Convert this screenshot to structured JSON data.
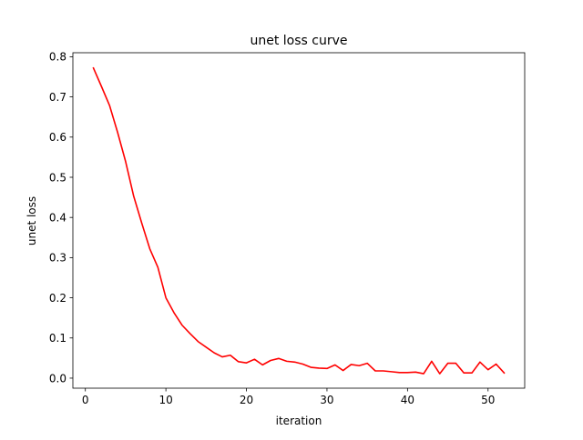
{
  "chart_data": {
    "type": "line",
    "title": "unet loss  curve",
    "xlabel": "iteration",
    "ylabel": "unet loss",
    "xlim": [
      -1.55,
      54.55
    ],
    "ylim": [
      -0.025,
      0.81
    ],
    "xticks": [
      0,
      10,
      20,
      30,
      40,
      50
    ],
    "xtick_labels": [
      "0",
      "10",
      "20",
      "30",
      "40",
      "50"
    ],
    "yticks": [
      0.0,
      0.1,
      0.2,
      0.3,
      0.4,
      0.5,
      0.6,
      0.7,
      0.8
    ],
    "ytick_labels": [
      "0.0",
      "0.1",
      "0.2",
      "0.3",
      "0.4",
      "0.5",
      "0.6",
      "0.7",
      "0.8"
    ],
    "grid": false,
    "legend": "none",
    "series": [
      {
        "name": "unet loss",
        "color": "#ff0000",
        "x": [
          1,
          2,
          3,
          4,
          5,
          6,
          7,
          8,
          9,
          10,
          11,
          12,
          13,
          14,
          15,
          16,
          17,
          18,
          19,
          20,
          21,
          22,
          23,
          24,
          25,
          26,
          27,
          28,
          29,
          30,
          31,
          32,
          33,
          34,
          35,
          36,
          37,
          38,
          39,
          40,
          41,
          42,
          43,
          44,
          45,
          46,
          47,
          48,
          49,
          50,
          51,
          52
        ],
        "values": [
          0.772,
          0.726,
          0.679,
          0.612,
          0.539,
          0.453,
          0.386,
          0.322,
          0.276,
          0.2,
          0.163,
          0.132,
          0.111,
          0.091,
          0.077,
          0.063,
          0.053,
          0.057,
          0.041,
          0.038,
          0.047,
          0.033,
          0.044,
          0.049,
          0.042,
          0.04,
          0.035,
          0.027,
          0.025,
          0.024,
          0.033,
          0.019,
          0.034,
          0.031,
          0.037,
          0.018,
          0.018,
          0.016,
          0.014,
          0.014,
          0.015,
          0.011,
          0.042,
          0.011,
          0.037,
          0.037,
          0.013,
          0.013,
          0.04,
          0.021,
          0.035,
          0.013
        ]
      }
    ]
  }
}
